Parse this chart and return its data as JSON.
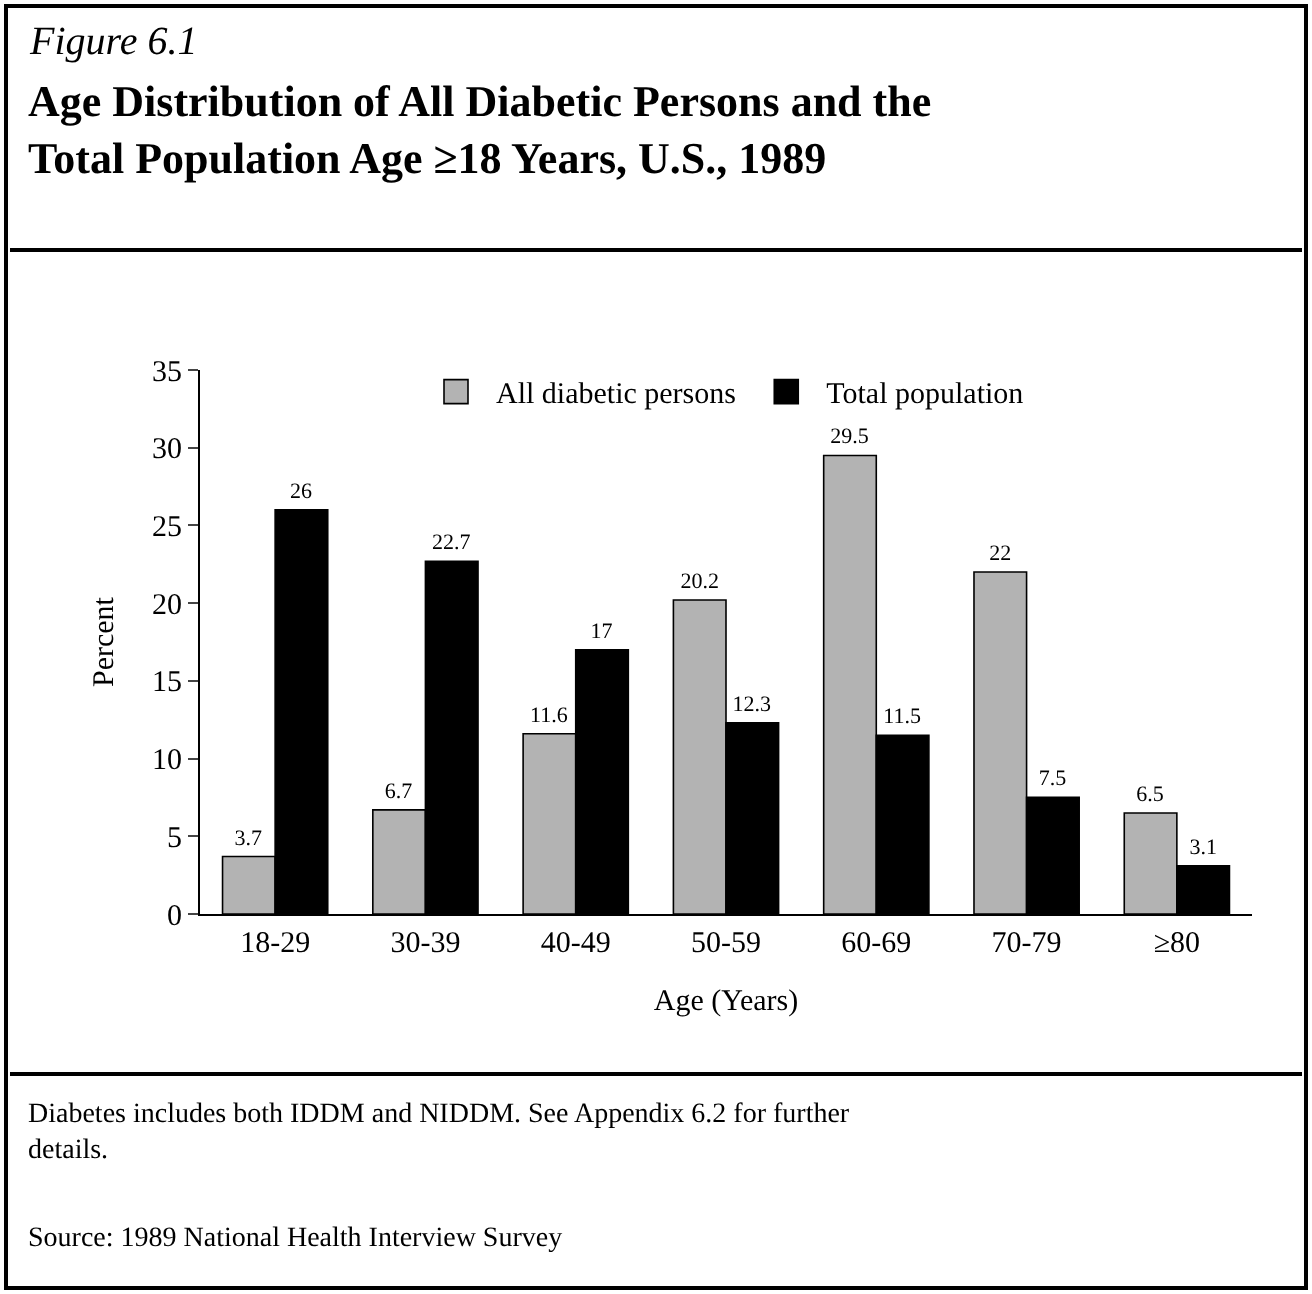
{
  "chart_data": {
    "type": "bar",
    "title": "Figure 6.1",
    "subtitle": "Age Distribution of All Diabetic Persons and the\nTotal Population Age ≥18 Years, U.S., 1989",
    "xlabel": "Age (Years)",
    "ylabel": "Percent",
    "categories": [
      "18-29",
      "30-39",
      "40-49",
      "50-59",
      "60-69",
      "70-79",
      "≥80"
    ],
    "series": [
      {
        "name": "All diabetic persons",
        "color": "#b3b3b3",
        "values": [
          3.7,
          6.7,
          11.6,
          20.2,
          29.5,
          22,
          6.5
        ]
      },
      {
        "name": "Total population",
        "color": "#000000",
        "values": [
          26,
          22.7,
          17,
          12.3,
          11.5,
          7.5,
          3.1
        ]
      }
    ],
    "ylim": [
      0,
      35
    ],
    "yticks": [
      0,
      5,
      10,
      15,
      20,
      25,
      30,
      35
    ],
    "legend": "top",
    "data_labels": true,
    "annotations": [
      "Diabetes includes both IDDM and NIDDM. See Appendix 6.2 for further\ndetails.",
      "Source: 1989 National Health Interview Survey"
    ]
  }
}
